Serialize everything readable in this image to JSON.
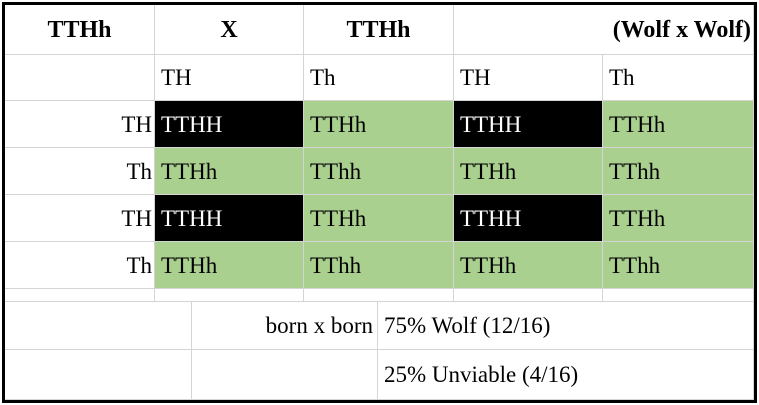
{
  "header": {
    "cells": [
      "TTHh",
      "X",
      "TTHh",
      "(Wolf x Wolf)"
    ]
  },
  "column_alleles": [
    "TH",
    "Th",
    "TH",
    "Th"
  ],
  "grid": {
    "rows": [
      {
        "label": "TH",
        "cells": [
          {
            "text": "TTHH",
            "fill": "#000000"
          },
          {
            "text": "TTHh",
            "fill": "#a9d08e"
          },
          {
            "text": "TTHH",
            "fill": "#000000"
          },
          {
            "text": "TTHh",
            "fill": "#a9d08e"
          }
        ]
      },
      {
        "label": "Th",
        "cells": [
          {
            "text": "TTHh",
            "fill": "#a9d08e"
          },
          {
            "text": "TThh",
            "fill": "#a9d08e"
          },
          {
            "text": "TTHh",
            "fill": "#a9d08e"
          },
          {
            "text": "TThh",
            "fill": "#a9d08e"
          }
        ]
      },
      {
        "label": "TH",
        "cells": [
          {
            "text": "TTHH",
            "fill": "#000000"
          },
          {
            "text": "TTHh",
            "fill": "#a9d08e"
          },
          {
            "text": "TTHH",
            "fill": "#000000"
          },
          {
            "text": "TTHh",
            "fill": "#a9d08e"
          }
        ]
      },
      {
        "label": "Th",
        "cells": [
          {
            "text": "TTHh",
            "fill": "#a9d08e"
          },
          {
            "text": "TThh",
            "fill": "#a9d08e"
          },
          {
            "text": "TTHh",
            "fill": "#a9d08e"
          },
          {
            "text": "TThh",
            "fill": "#a9d08e"
          }
        ]
      }
    ]
  },
  "summary": {
    "label": "born x born",
    "results": [
      "75% Wolf (12/16)",
      "25% Unviable (4/16)"
    ]
  }
}
